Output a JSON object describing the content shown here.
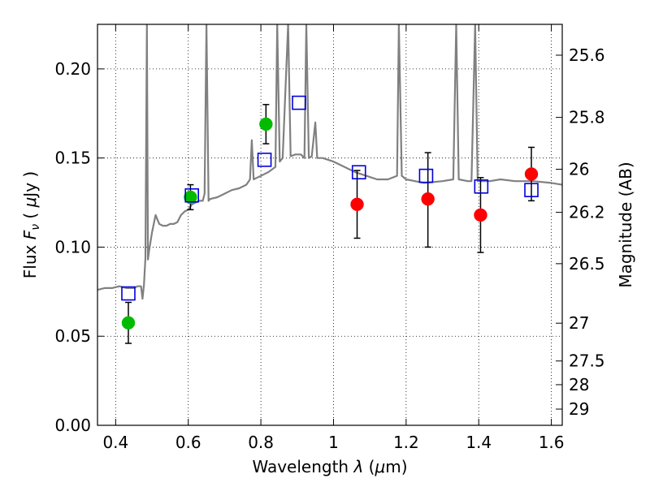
{
  "chart_data": {
    "type": "scatter",
    "xlabel": "Wavelength  λ (μm)",
    "ylabel": "Flux  F_ν  ( μJy )",
    "ylabel_parts": {
      "pre": "Flux ",
      "sym": "F",
      "sub": "ν",
      "post": "  ( ",
      "mu": "μ",
      "unit": "Jy )"
    },
    "xlabel_parts": {
      "pre": "Wavelength  ",
      "sym": "λ",
      "post": " (",
      "mu": "μ",
      "unit": "m)"
    },
    "y2label": "Magnitude (AB)",
    "xlim": [
      0.35,
      1.63
    ],
    "ylim": [
      0.0,
      0.225
    ],
    "grid": true,
    "x_ticks": [
      0.4,
      0.6,
      0.8,
      1.0,
      1.2,
      1.4,
      1.6
    ],
    "x_tick_labels": [
      "0.4",
      "0.6",
      "0.8",
      "1",
      "1.2",
      "1.4",
      "1.6"
    ],
    "y_ticks": [
      0.0,
      0.05,
      0.1,
      0.15,
      0.2
    ],
    "y_tick_labels": [
      "0.00",
      "0.05",
      "0.10",
      "0.15",
      "0.20"
    ],
    "y2_ticks": [
      {
        "label": "25.6",
        "flux": 0.2077
      },
      {
        "label": "25.8",
        "flux": 0.1728
      },
      {
        "label": "26",
        "flux": 0.1437
      },
      {
        "label": "26.2",
        "flux": 0.1195
      },
      {
        "label": "26.5",
        "flux": 0.0907
      },
      {
        "label": "27",
        "flux": 0.0573
      },
      {
        "label": "27.5",
        "flux": 0.0361
      },
      {
        "label": "28",
        "flux": 0.0228
      },
      {
        "label": "29",
        "flux": 0.0091
      }
    ],
    "series": [
      {
        "marker": "circle",
        "color": "#00bb00",
        "points": [
          {
            "x": 0.435,
            "y": 0.0575,
            "ylo": 0.046,
            "yhi": 0.069
          },
          {
            "x": 0.606,
            "y": 0.128,
            "ylo": 0.121,
            "yhi": 0.135
          },
          {
            "x": 0.814,
            "y": 0.169,
            "ylo": 0.158,
            "yhi": 0.18
          }
        ]
      },
      {
        "marker": "circle",
        "color": "#ff0000",
        "points": [
          {
            "x": 1.065,
            "y": 0.124,
            "ylo": 0.105,
            "yhi": 0.143
          },
          {
            "x": 1.26,
            "y": 0.127,
            "ylo": 0.1,
            "yhi": 0.153
          },
          {
            "x": 1.405,
            "y": 0.118,
            "ylo": 0.097,
            "yhi": 0.139
          },
          {
            "x": 1.545,
            "y": 0.141,
            "ylo": 0.126,
            "yhi": 0.156
          }
        ]
      },
      {
        "marker": "open-square",
        "color": "#0000dd",
        "points": [
          {
            "x": 0.435,
            "y": 0.074
          },
          {
            "x": 0.61,
            "y": 0.129
          },
          {
            "x": 0.81,
            "y": 0.149
          },
          {
            "x": 0.905,
            "y": 0.181
          },
          {
            "x": 1.07,
            "y": 0.142
          },
          {
            "x": 1.255,
            "y": 0.14
          },
          {
            "x": 1.407,
            "y": 0.134
          },
          {
            "x": 1.545,
            "y": 0.132
          }
        ]
      },
      {
        "marker": "line",
        "color": "#808080",
        "points": [
          [
            0.35,
            0.076
          ],
          [
            0.37,
            0.077
          ],
          [
            0.39,
            0.077
          ],
          [
            0.41,
            0.078
          ],
          [
            0.43,
            0.077
          ],
          [
            0.45,
            0.077
          ],
          [
            0.46,
            0.078
          ],
          [
            0.47,
            0.078
          ],
          [
            0.474,
            0.071
          ],
          [
            0.478,
            0.079
          ],
          [
            0.482,
            0.094
          ],
          [
            0.486,
            0.225
          ],
          [
            0.489,
            0.093
          ],
          [
            0.492,
            0.098
          ],
          [
            0.5,
            0.108
          ],
          [
            0.51,
            0.118
          ],
          [
            0.52,
            0.113
          ],
          [
            0.53,
            0.112
          ],
          [
            0.54,
            0.112
          ],
          [
            0.55,
            0.113
          ],
          [
            0.56,
            0.113
          ],
          [
            0.57,
            0.114
          ],
          [
            0.58,
            0.118
          ],
          [
            0.59,
            0.12
          ],
          [
            0.6,
            0.121
          ],
          [
            0.61,
            0.124
          ],
          [
            0.62,
            0.125
          ],
          [
            0.63,
            0.126
          ],
          [
            0.64,
            0.126
          ],
          [
            0.645,
            0.13
          ],
          [
            0.65,
            0.225
          ],
          [
            0.656,
            0.126
          ],
          [
            0.66,
            0.127
          ],
          [
            0.68,
            0.128
          ],
          [
            0.7,
            0.13
          ],
          [
            0.72,
            0.132
          ],
          [
            0.74,
            0.133
          ],
          [
            0.76,
            0.135
          ],
          [
            0.77,
            0.138
          ],
          [
            0.775,
            0.16
          ],
          [
            0.78,
            0.138
          ],
          [
            0.79,
            0.139
          ],
          [
            0.8,
            0.14
          ],
          [
            0.82,
            0.142
          ],
          [
            0.84,
            0.145
          ],
          [
            0.845,
            0.225
          ],
          [
            0.852,
            0.148
          ],
          [
            0.86,
            0.15
          ],
          [
            0.875,
            0.225
          ],
          [
            0.882,
            0.151
          ],
          [
            0.895,
            0.152
          ],
          [
            0.91,
            0.152
          ],
          [
            0.92,
            0.15
          ],
          [
            0.925,
            0.225
          ],
          [
            0.932,
            0.15
          ],
          [
            0.94,
            0.151
          ],
          [
            0.95,
            0.17
          ],
          [
            0.955,
            0.15
          ],
          [
            0.97,
            0.15
          ],
          [
            1.0,
            0.148
          ],
          [
            1.03,
            0.145
          ],
          [
            1.06,
            0.142
          ],
          [
            1.09,
            0.14
          ],
          [
            1.12,
            0.138
          ],
          [
            1.15,
            0.138
          ],
          [
            1.175,
            0.14
          ],
          [
            1.18,
            0.225
          ],
          [
            1.188,
            0.14
          ],
          [
            1.2,
            0.138
          ],
          [
            1.25,
            0.136
          ],
          [
            1.3,
            0.137
          ],
          [
            1.33,
            0.138
          ],
          [
            1.338,
            0.225
          ],
          [
            1.345,
            0.138
          ],
          [
            1.37,
            0.137
          ],
          [
            1.38,
            0.137
          ],
          [
            1.39,
            0.225
          ],
          [
            1.397,
            0.137
          ],
          [
            1.43,
            0.137
          ],
          [
            1.46,
            0.138
          ],
          [
            1.5,
            0.137
          ],
          [
            1.55,
            0.137
          ],
          [
            1.6,
            0.136
          ],
          [
            1.63,
            0.135
          ]
        ]
      }
    ]
  }
}
